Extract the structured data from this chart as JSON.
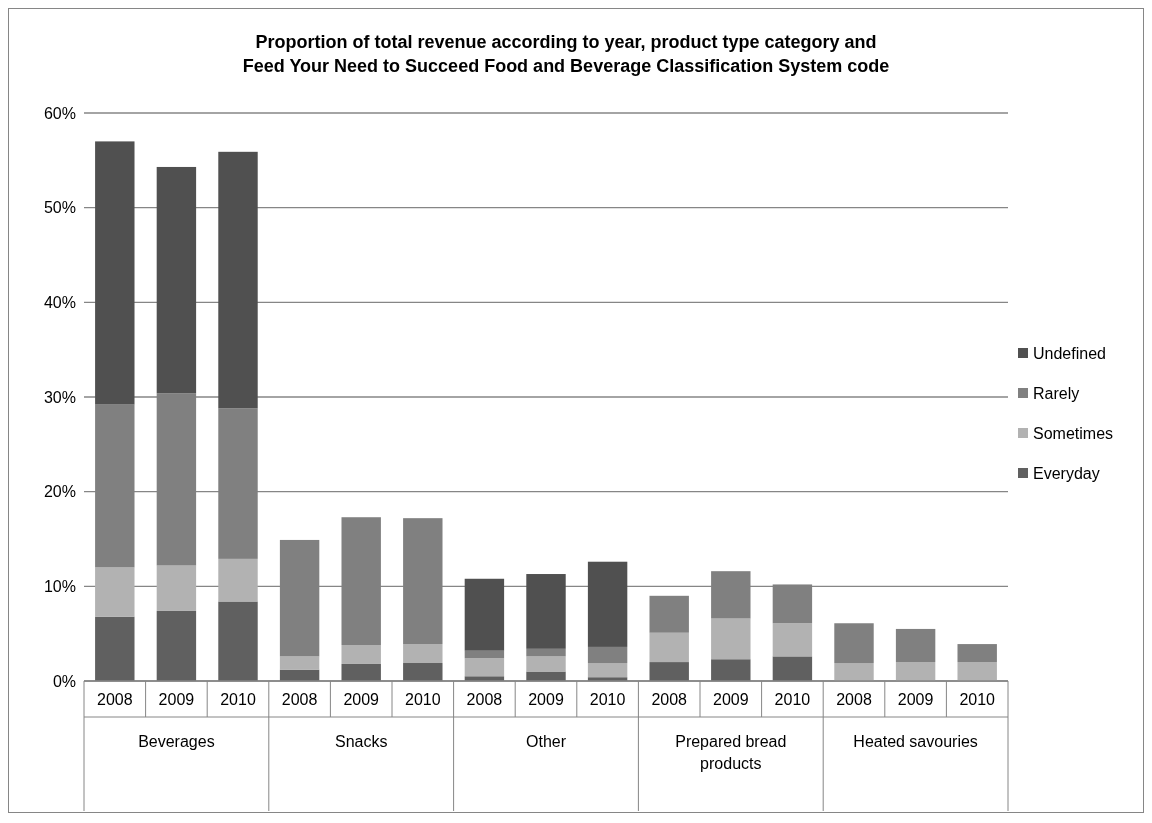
{
  "chart_data": {
    "type": "bar",
    "title": "Proportion of total revenue according to year, product type category and Feed Your Need to Succeed Food and Beverage Classification  System code",
    "categories": [
      "2008",
      "2009",
      "2010",
      "2008",
      "2009",
      "2010",
      "2008",
      "2009",
      "2010",
      "2008",
      "2009",
      "2010",
      "2008",
      "2009",
      "2010"
    ],
    "annotations": [
      "Beverages",
      "Snacks",
      "Other",
      "Prepared bread products",
      "Heated savouries"
    ],
    "stacked": true,
    "series": [
      {
        "name": "Everyday",
        "color": "#606060",
        "values": [
          6.8,
          7.4,
          8.4,
          1.2,
          1.8,
          1.9,
          0.5,
          1.0,
          0.4,
          2.0,
          2.3,
          2.6,
          0,
          0,
          0
        ]
      },
      {
        "name": "Sometimes",
        "color": "#b2b2b2",
        "values": [
          5.2,
          4.8,
          4.5,
          1.4,
          2.0,
          2.0,
          1.9,
          1.6,
          1.5,
          3.1,
          4.3,
          3.5,
          1.9,
          2.0,
          2.0
        ]
      },
      {
        "name": "Rarely",
        "color": "#808080",
        "values": [
          17.2,
          18.2,
          15.9,
          12.3,
          13.5,
          13.3,
          0.8,
          0.8,
          1.7,
          3.9,
          5.0,
          4.1,
          4.2,
          3.5,
          1.9
        ]
      },
      {
        "name": "Undefined",
        "color": "#505050",
        "values": [
          27.8,
          23.9,
          27.1,
          0,
          0,
          0,
          7.6,
          7.9,
          9.0,
          0,
          0,
          0,
          0,
          0,
          0
        ]
      }
    ],
    "ylim": [
      0,
      60
    ],
    "yticks": [
      {
        "value": 0,
        "label": "0%"
      },
      {
        "value": 10,
        "label": "10%"
      },
      {
        "value": 20,
        "label": "20%"
      },
      {
        "value": 30,
        "label": "30%"
      },
      {
        "value": 40,
        "label": "40%"
      },
      {
        "value": 50,
        "label": "50%"
      },
      {
        "value": 60,
        "label": "60%"
      }
    ],
    "grid": "y",
    "legend": "right"
  }
}
